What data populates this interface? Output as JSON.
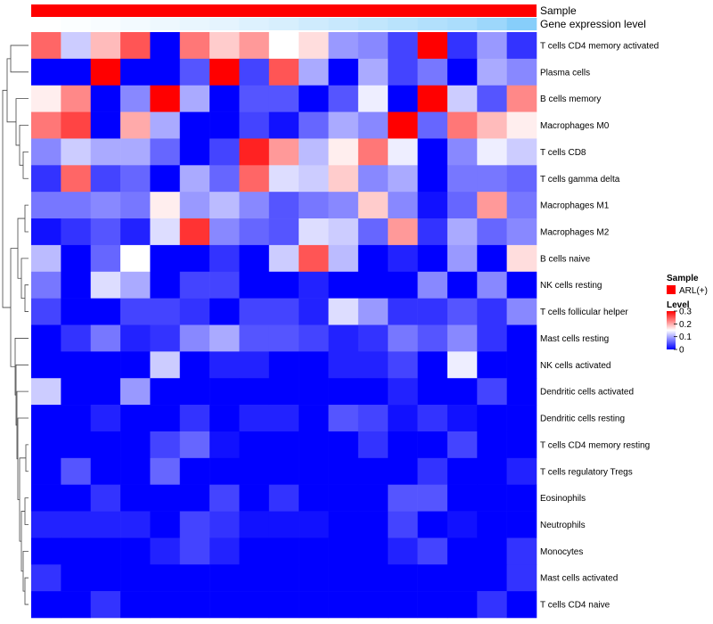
{
  "chart_data": {
    "type": "heatmap",
    "rows": [
      "T cells CD4 memory activated",
      "Plasma cells",
      "B cells memory",
      "Macrophages M0",
      "T cells CD8",
      "T cells gamma delta",
      "Macrophages M1",
      "Macrophages M2",
      "B cells naive",
      "NK cells resting",
      "T cells follicular helper",
      "Mast cells resting",
      "NK cells activated",
      "Dendritic cells activated",
      "Dendritic cells resting",
      "T cells CD4 memory resting",
      "T cells regulatory  Tregs",
      "Eosinophils",
      "Neutrophils",
      "Monocytes",
      "Mast cells activated",
      "T cells CD4 naive"
    ],
    "values": [
      [
        0.24,
        0.12,
        0.19,
        0.25,
        0.0,
        0.23,
        0.18,
        0.21,
        0.15,
        0.17,
        0.09,
        0.08,
        0.04,
        0.3,
        0.03,
        0.09,
        0.03
      ],
      [
        0.0,
        0.0,
        0.3,
        0.0,
        0.0,
        0.05,
        0.3,
        0.04,
        0.25,
        0.1,
        0.0,
        0.1,
        0.04,
        0.07,
        0.0,
        0.1,
        0.08
      ],
      [
        0.16,
        0.22,
        0.0,
        0.08,
        0.3,
        0.1,
        0.0,
        0.05,
        0.05,
        0.0,
        0.05,
        0.14,
        0.0,
        0.3,
        0.12,
        0.05,
        0.22
      ],
      [
        0.23,
        0.26,
        0.0,
        0.2,
        0.1,
        0.0,
        0.0,
        0.04,
        0.01,
        0.06,
        0.1,
        0.08,
        0.3,
        0.06,
        0.23,
        0.19,
        0.16
      ],
      [
        0.08,
        0.12,
        0.1,
        0.1,
        0.06,
        0.0,
        0.04,
        0.28,
        0.21,
        0.11,
        0.16,
        0.23,
        0.14,
        0.0,
        0.08,
        0.14,
        0.12
      ],
      [
        0.03,
        0.24,
        0.04,
        0.06,
        0.0,
        0.1,
        0.06,
        0.24,
        0.13,
        0.12,
        0.18,
        0.08,
        0.1,
        0.0,
        0.07,
        0.07,
        0.06
      ],
      [
        0.07,
        0.07,
        0.08,
        0.07,
        0.16,
        0.09,
        0.11,
        0.08,
        0.05,
        0.07,
        0.08,
        0.18,
        0.08,
        0.01,
        0.06,
        0.21,
        0.07
      ],
      [
        0.01,
        0.03,
        0.05,
        0.02,
        0.13,
        0.27,
        0.08,
        0.06,
        0.05,
        0.13,
        0.12,
        0.06,
        0.21,
        0.03,
        0.1,
        0.06,
        0.08
      ],
      [
        0.11,
        0.0,
        0.06,
        0.15,
        0.0,
        0.0,
        0.03,
        0.0,
        0.12,
        0.25,
        0.11,
        0.0,
        0.02,
        0.0,
        0.09,
        0.0,
        0.17
      ],
      [
        0.07,
        0.0,
        0.13,
        0.1,
        0.0,
        0.04,
        0.04,
        0.0,
        0.0,
        0.02,
        0.0,
        0.0,
        0.0,
        0.08,
        0.0,
        0.08,
        0.0
      ],
      [
        0.04,
        0.0,
        0.0,
        0.04,
        0.04,
        0.03,
        0.0,
        0.04,
        0.04,
        0.02,
        0.13,
        0.09,
        0.03,
        0.03,
        0.05,
        0.03,
        0.08
      ],
      [
        0.0,
        0.03,
        0.07,
        0.02,
        0.03,
        0.08,
        0.1,
        0.05,
        0.05,
        0.04,
        0.02,
        0.03,
        0.07,
        0.05,
        0.08,
        0.03,
        0.0
      ],
      [
        0.0,
        0.0,
        0.0,
        0.0,
        0.12,
        0.0,
        0.02,
        0.02,
        0.0,
        0.0,
        0.02,
        0.02,
        0.04,
        0.0,
        0.14,
        0.0,
        0.0
      ],
      [
        0.12,
        0.0,
        0.0,
        0.09,
        0.0,
        0.0,
        0.0,
        0.0,
        0.0,
        0.0,
        0.0,
        0.0,
        0.02,
        0.0,
        0.0,
        0.04,
        0.0
      ],
      [
        0.0,
        0.0,
        0.02,
        0.0,
        0.0,
        0.03,
        0.0,
        0.02,
        0.02,
        0.0,
        0.05,
        0.04,
        0.01,
        0.03,
        0.01,
        0.0,
        0.0
      ],
      [
        0.0,
        0.0,
        0.0,
        0.0,
        0.04,
        0.06,
        0.01,
        0.0,
        0.0,
        0.0,
        0.0,
        0.03,
        0.0,
        0.0,
        0.04,
        0.0,
        0.0
      ],
      [
        0.0,
        0.05,
        0.0,
        0.0,
        0.06,
        0.0,
        0.0,
        0.0,
        0.0,
        0.0,
        0.0,
        0.0,
        0.0,
        0.03,
        0.0,
        0.0,
        0.02
      ],
      [
        0.0,
        0.0,
        0.03,
        0.0,
        0.0,
        0.0,
        0.04,
        0.0,
        0.03,
        0.0,
        0.0,
        0.0,
        0.05,
        0.05,
        0.0,
        0.0,
        0.0
      ],
      [
        0.02,
        0.02,
        0.02,
        0.02,
        0.0,
        0.04,
        0.03,
        0.01,
        0.01,
        0.01,
        0.0,
        0.0,
        0.04,
        0.0,
        0.01,
        0.0,
        0.0
      ],
      [
        0.0,
        0.0,
        0.0,
        0.0,
        0.02,
        0.04,
        0.02,
        0.0,
        0.0,
        0.0,
        0.0,
        0.0,
        0.02,
        0.04,
        0.0,
        0.0,
        0.03
      ],
      [
        0.03,
        0.0,
        0.0,
        0.0,
        0.0,
        0.0,
        0.0,
        0.0,
        0.0,
        0.0,
        0.0,
        0.0,
        0.0,
        0.0,
        0.0,
        0.0,
        0.03
      ],
      [
        0.0,
        0.0,
        0.03,
        0.0,
        0.0,
        0.0,
        0.0,
        0.0,
        0.0,
        0.0,
        0.0,
        0.0,
        0.0,
        0.0,
        0.0,
        0.03,
        0.0
      ]
    ],
    "annotation_tracks": [
      {
        "name": "Sample",
        "value": "ARL(+)",
        "color": "#ff0000"
      },
      {
        "name": "Gene expression level",
        "values": [
          0.0,
          0.03,
          0.06,
          0.1,
          0.14,
          0.18,
          0.22,
          0.28,
          0.33,
          0.4,
          0.46,
          0.52,
          0.58,
          0.64,
          0.7,
          0.82,
          1.0
        ],
        "colors": [
          "#ffffff",
          "#87cefa"
        ]
      }
    ],
    "color_scale": {
      "title": "Level",
      "min": 0,
      "max": 0.3,
      "colors": [
        "#0000ff",
        "#ffffff",
        "#ff0000"
      ],
      "ticks": [
        "0.3",
        "0.2",
        "0.1",
        "0"
      ]
    },
    "legend": {
      "title": "Sample",
      "label": "ARL(+)",
      "color": "#ff0000"
    },
    "row_dendrogram": true
  }
}
